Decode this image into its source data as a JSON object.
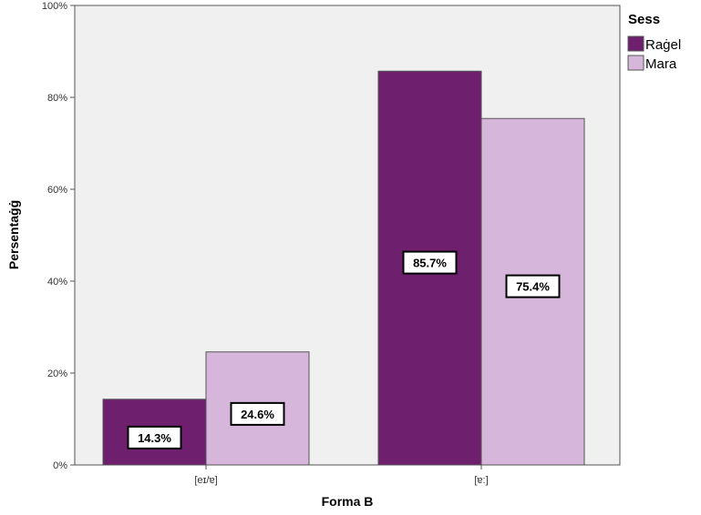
{
  "chart_data": {
    "type": "bar",
    "categories": [
      "[eɪ/ɐ]",
      "[ɐ:]"
    ],
    "series": [
      {
        "name": "Raġel",
        "values": [
          14.3,
          85.7
        ],
        "labels": [
          "14.3%",
          "85.7%"
        ],
        "color": "#6e1f6e"
      },
      {
        "name": "Mara",
        "values": [
          24.6,
          75.4
        ],
        "labels": [
          "24.6%",
          "75.4%"
        ],
        "color": "#d6b6db"
      }
    ],
    "xlabel": "Forma B",
    "ylabel": "Persentaġġ",
    "ylim": [
      0,
      100
    ],
    "yticks": [
      "0%",
      "20%",
      "40%",
      "60%",
      "80%",
      "100%"
    ],
    "legend_title": "Sess",
    "legend_position": "top-right",
    "plot_background": "#f0f0f0",
    "grid": false
  }
}
